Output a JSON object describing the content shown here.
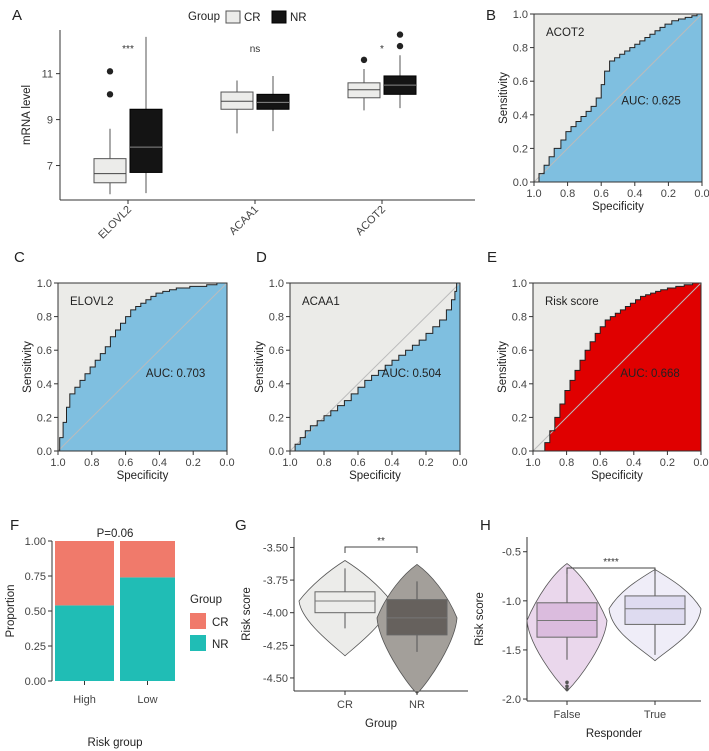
{
  "colors": {
    "cr_box": "#ececea",
    "nr_box": "#141414",
    "roc_blue": "#7fbfe0",
    "roc_red": "#e00000",
    "panel_bg": "#ebebe8",
    "bar_cr": "#f07a6b",
    "bar_nr": "#20bdb5",
    "violin_cr": "#ececea",
    "violin_nr": "#a39f9a",
    "box_nr_dark": "#5f5a57",
    "violin_false": "#ead7ec",
    "violin_true": "#efedf8",
    "box_false": "#d9b9dd",
    "box_true": "#dcd8ee"
  },
  "chart_data": [
    {
      "panel": "A",
      "type": "boxplot",
      "legend": {
        "title": "Group",
        "entries": [
          "CR",
          "NR"
        ]
      },
      "ylabel": "mRNA level",
      "ylim": [
        5.5,
        12.9
      ],
      "yticks": [
        "7",
        "9",
        "11"
      ],
      "ytick_values": [
        7,
        9,
        11
      ],
      "categories": [
        "ELOVL2",
        "ACAA1",
        "ACOT2"
      ],
      "significance": [
        "***",
        "ns",
        "*"
      ],
      "series": [
        {
          "name": "CR",
          "boxes": [
            {
              "min": 5.75,
              "q1": 6.25,
              "median": 6.65,
              "q3": 7.3,
              "max": 8.6,
              "outliers": [
                10.1,
                11.1
              ]
            },
            {
              "min": 8.4,
              "q1": 9.45,
              "median": 9.8,
              "q3": 10.2,
              "max": 10.7,
              "outliers": []
            },
            {
              "min": 9.4,
              "q1": 9.95,
              "median": 10.3,
              "q3": 10.6,
              "max": 11.2,
              "outliers": [
                11.6
              ]
            }
          ]
        },
        {
          "name": "NR",
          "boxes": [
            {
              "min": 5.8,
              "q1": 6.7,
              "median": 7.8,
              "q3": 9.45,
              "max": 12.6,
              "outliers": []
            },
            {
              "min": 8.5,
              "q1": 9.45,
              "median": 9.75,
              "q3": 10.1,
              "max": 10.9,
              "outliers": []
            },
            {
              "min": 9.5,
              "q1": 10.1,
              "median": 10.5,
              "q3": 10.9,
              "max": 11.8,
              "outliers": [
                12.2,
                12.7
              ]
            }
          ]
        }
      ]
    },
    {
      "panel": "B",
      "type": "roc",
      "title": "ACOT2",
      "auc_text": "AUC: 0.625",
      "xlabel": "Specificity",
      "ylabel": "Sensitivity",
      "ticks": [
        "1.0",
        "0.8",
        "0.6",
        "0.4",
        "0.2",
        "0.0"
      ],
      "yticks": [
        "0.0",
        "0.2",
        "0.4",
        "0.6",
        "0.8",
        "1.0"
      ],
      "specificity": [
        1.0,
        0.97,
        0.97,
        0.94,
        0.94,
        0.91,
        0.91,
        0.88,
        0.88,
        0.84,
        0.84,
        0.81,
        0.81,
        0.78,
        0.78,
        0.75,
        0.75,
        0.72,
        0.72,
        0.69,
        0.69,
        0.66,
        0.66,
        0.63,
        0.63,
        0.6,
        0.6,
        0.58,
        0.58,
        0.55,
        0.55,
        0.52,
        0.52,
        0.49,
        0.49,
        0.46,
        0.46,
        0.43,
        0.43,
        0.4,
        0.4,
        0.37,
        0.37,
        0.34,
        0.34,
        0.31,
        0.31,
        0.28,
        0.28,
        0.25,
        0.25,
        0.22,
        0.22,
        0.18,
        0.18,
        0.14,
        0.14,
        0.1,
        0.1,
        0.06,
        0.06,
        0.03,
        0.03,
        0.0
      ],
      "sensitivity": [
        0.0,
        0.0,
        0.05,
        0.05,
        0.1,
        0.1,
        0.15,
        0.15,
        0.2,
        0.2,
        0.25,
        0.25,
        0.3,
        0.3,
        0.33,
        0.33,
        0.36,
        0.36,
        0.39,
        0.39,
        0.42,
        0.42,
        0.45,
        0.45,
        0.5,
        0.5,
        0.58,
        0.58,
        0.66,
        0.66,
        0.72,
        0.72,
        0.74,
        0.74,
        0.76,
        0.76,
        0.78,
        0.78,
        0.8,
        0.8,
        0.82,
        0.82,
        0.84,
        0.84,
        0.86,
        0.86,
        0.88,
        0.88,
        0.9,
        0.9,
        0.92,
        0.92,
        0.94,
        0.94,
        0.96,
        0.96,
        0.97,
        0.97,
        0.98,
        0.98,
        0.99,
        0.99,
        1.0,
        1.0
      ]
    },
    {
      "panel": "C",
      "type": "roc",
      "title": "ELOVL2",
      "auc_text": "AUC: 0.703",
      "xlabel": "Specificity",
      "ylabel": "Sensitivity",
      "ticks": [
        "1.0",
        "0.8",
        "0.6",
        "0.4",
        "0.2",
        "0.0"
      ],
      "yticks": [
        "0.0",
        "0.2",
        "0.4",
        "0.6",
        "0.8",
        "1.0"
      ],
      "specificity": [
        1.0,
        0.99,
        0.99,
        0.97,
        0.97,
        0.95,
        0.95,
        0.93,
        0.93,
        0.9,
        0.9,
        0.87,
        0.87,
        0.84,
        0.84,
        0.81,
        0.81,
        0.78,
        0.78,
        0.75,
        0.75,
        0.72,
        0.72,
        0.69,
        0.69,
        0.66,
        0.66,
        0.63,
        0.63,
        0.6,
        0.6,
        0.57,
        0.57,
        0.54,
        0.54,
        0.51,
        0.51,
        0.48,
        0.48,
        0.45,
        0.45,
        0.42,
        0.42,
        0.38,
        0.38,
        0.34,
        0.34,
        0.3,
        0.3,
        0.26,
        0.26,
        0.22,
        0.22,
        0.17,
        0.17,
        0.12,
        0.12,
        0.06,
        0.06,
        0.0
      ],
      "sensitivity": [
        0.0,
        0.0,
        0.08,
        0.08,
        0.17,
        0.17,
        0.26,
        0.26,
        0.34,
        0.34,
        0.38,
        0.38,
        0.42,
        0.42,
        0.46,
        0.46,
        0.5,
        0.5,
        0.54,
        0.54,
        0.58,
        0.58,
        0.62,
        0.62,
        0.68,
        0.68,
        0.72,
        0.72,
        0.76,
        0.76,
        0.8,
        0.8,
        0.84,
        0.84,
        0.86,
        0.86,
        0.88,
        0.88,
        0.9,
        0.9,
        0.92,
        0.92,
        0.94,
        0.94,
        0.95,
        0.95,
        0.96,
        0.96,
        0.97,
        0.97,
        0.97,
        0.97,
        0.98,
        0.98,
        0.98,
        0.98,
        0.99,
        0.99,
        1.0,
        1.0
      ]
    },
    {
      "panel": "D",
      "type": "roc",
      "title": "ACAA1",
      "auc_text": "AUC: 0.504",
      "xlabel": "Specificity",
      "ylabel": "Sensitivity",
      "ticks": [
        "1.0",
        "0.8",
        "0.6",
        "0.4",
        "0.2",
        "0.0"
      ],
      "yticks": [
        "0.0",
        "0.2",
        "0.4",
        "0.6",
        "0.8",
        "1.0"
      ],
      "specificity": [
        1.0,
        0.97,
        0.97,
        0.94,
        0.94,
        0.91,
        0.91,
        0.88,
        0.88,
        0.84,
        0.84,
        0.8,
        0.8,
        0.76,
        0.76,
        0.72,
        0.72,
        0.68,
        0.68,
        0.64,
        0.64,
        0.6,
        0.6,
        0.56,
        0.56,
        0.52,
        0.52,
        0.48,
        0.48,
        0.44,
        0.44,
        0.4,
        0.4,
        0.36,
        0.36,
        0.32,
        0.32,
        0.28,
        0.28,
        0.24,
        0.24,
        0.2,
        0.2,
        0.16,
        0.16,
        0.12,
        0.12,
        0.08,
        0.08,
        0.05,
        0.05,
        0.03,
        0.03,
        0.02,
        0.02,
        0.0
      ],
      "sensitivity": [
        0.0,
        0.0,
        0.04,
        0.04,
        0.08,
        0.08,
        0.12,
        0.12,
        0.15,
        0.15,
        0.18,
        0.18,
        0.21,
        0.21,
        0.24,
        0.24,
        0.27,
        0.27,
        0.3,
        0.3,
        0.34,
        0.34,
        0.38,
        0.38,
        0.42,
        0.42,
        0.45,
        0.45,
        0.48,
        0.48,
        0.51,
        0.51,
        0.54,
        0.54,
        0.57,
        0.57,
        0.6,
        0.6,
        0.63,
        0.63,
        0.66,
        0.66,
        0.7,
        0.7,
        0.74,
        0.74,
        0.78,
        0.78,
        0.84,
        0.84,
        0.9,
        0.9,
        0.95,
        0.95,
        1.0,
        1.0
      ]
    },
    {
      "panel": "E",
      "type": "roc",
      "title": "Risk score",
      "auc_text": "AUC: 0.668",
      "xlabel": "Specificity",
      "ylabel": "Sensitivity",
      "ticks": [
        "1.0",
        "0.8",
        "0.6",
        "0.4",
        "0.2",
        "0.0"
      ],
      "yticks": [
        "0.0",
        "0.2",
        "0.4",
        "0.6",
        "0.8",
        "1.0"
      ],
      "specificity": [
        0.95,
        0.93,
        0.93,
        0.9,
        0.9,
        0.87,
        0.87,
        0.84,
        0.84,
        0.81,
        0.81,
        0.78,
        0.78,
        0.75,
        0.75,
        0.72,
        0.72,
        0.69,
        0.69,
        0.66,
        0.66,
        0.63,
        0.63,
        0.6,
        0.6,
        0.57,
        0.57,
        0.54,
        0.54,
        0.51,
        0.51,
        0.48,
        0.48,
        0.45,
        0.45,
        0.42,
        0.42,
        0.39,
        0.39,
        0.36,
        0.36,
        0.33,
        0.33,
        0.3,
        0.3,
        0.27,
        0.27,
        0.24,
        0.24,
        0.2,
        0.2,
        0.15,
        0.15,
        0.1,
        0.1,
        0.05,
        0.05,
        0.0
      ],
      "sensitivity": [
        0.0,
        0.0,
        0.05,
        0.05,
        0.12,
        0.12,
        0.2,
        0.2,
        0.28,
        0.28,
        0.36,
        0.36,
        0.42,
        0.42,
        0.48,
        0.48,
        0.54,
        0.54,
        0.6,
        0.6,
        0.65,
        0.65,
        0.7,
        0.7,
        0.74,
        0.74,
        0.78,
        0.78,
        0.8,
        0.8,
        0.82,
        0.82,
        0.84,
        0.84,
        0.86,
        0.86,
        0.88,
        0.88,
        0.9,
        0.9,
        0.92,
        0.92,
        0.93,
        0.93,
        0.94,
        0.94,
        0.95,
        0.95,
        0.96,
        0.96,
        0.97,
        0.97,
        0.98,
        0.98,
        0.99,
        0.99,
        1.0,
        1.0
      ]
    },
    {
      "panel": "F",
      "type": "stacked_bar",
      "title": "P=0.06",
      "xlabel": "Risk group",
      "ylabel": "Proportion",
      "categories": [
        "High",
        "Low"
      ],
      "ylim": [
        0,
        1
      ],
      "yticks": [
        "0.00",
        "0.25",
        "0.50",
        "0.75",
        "1.00"
      ],
      "legend": {
        "title": "Group",
        "entries": [
          "CR",
          "NR"
        ]
      },
      "series": [
        {
          "name": "NR",
          "values": [
            0.54,
            0.74
          ]
        },
        {
          "name": "CR",
          "values": [
            0.46,
            0.26
          ]
        }
      ]
    },
    {
      "panel": "G",
      "type": "violin_box",
      "xlabel": "Group",
      "ylabel": "Risk score",
      "categories": [
        "CR",
        "NR"
      ],
      "ylim": [
        -4.6,
        -3.42
      ],
      "yticks": [
        "-3.50",
        "-3.75",
        "-4.00",
        "-4.25",
        "-4.50"
      ],
      "significance": "**",
      "boxes": [
        {
          "min": -4.12,
          "q1": -4.0,
          "median": -3.91,
          "q3": -3.84,
          "max": -3.66,
          "vmin": -4.33,
          "vmax": -3.6
        },
        {
          "min": -4.3,
          "q1": -4.17,
          "median": -4.04,
          "q3": -3.9,
          "max": -3.76,
          "vmin": -4.62,
          "vmax": -3.63
        }
      ]
    },
    {
      "panel": "H",
      "type": "violin_box",
      "xlabel": "Responder",
      "ylabel": "Risk score",
      "categories": [
        "False",
        "True"
      ],
      "ylim": [
        -2.02,
        -0.35
      ],
      "yticks": [
        "-0.5",
        "-1.0",
        "-1.5",
        "-2.0"
      ],
      "significance": "****",
      "boxes": [
        {
          "min": -1.6,
          "q1": -1.37,
          "median": -1.2,
          "q3": -1.02,
          "max": -0.72,
          "vmin": -1.92,
          "vmax": -0.62,
          "outliers": [
            -1.83,
            -1.87,
            -1.9
          ]
        },
        {
          "min": -1.55,
          "q1": -1.24,
          "median": -1.08,
          "q3": -0.95,
          "max": -0.72,
          "vmin": -1.61,
          "vmax": -0.68,
          "outliers": []
        }
      ]
    }
  ]
}
